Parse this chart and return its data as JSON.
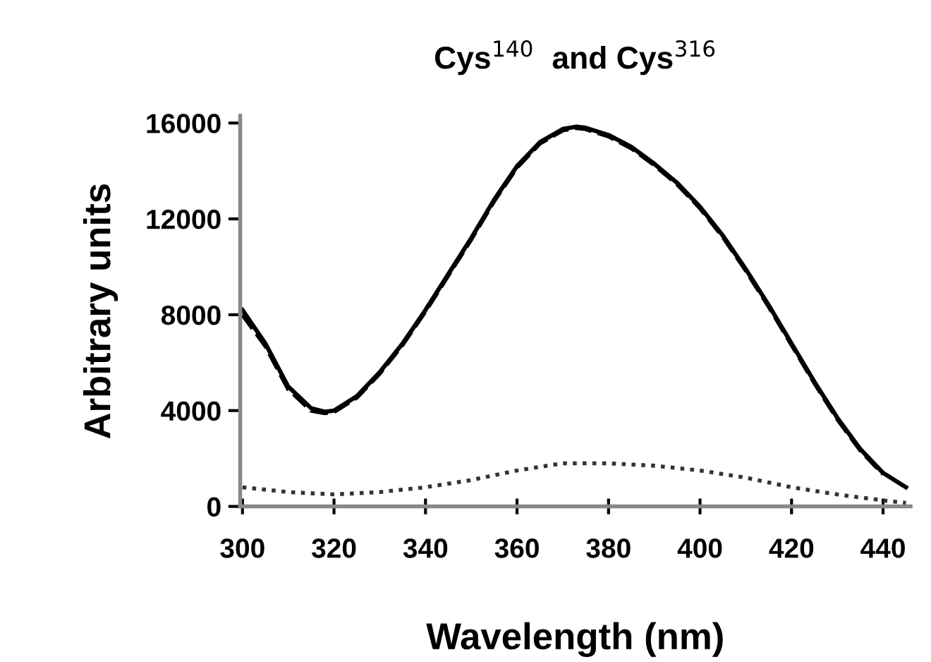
{
  "chart_data": {
    "type": "line",
    "title": "Cys$^{140}$  and Cys$^{316}$",
    "xlabel": "Wavelength (nm)",
    "ylabel": "Arbitrary units",
    "xlim": [
      299.5,
      446
    ],
    "ylim": [
      0,
      16300
    ],
    "xticks": [
      300,
      320,
      340,
      360,
      380,
      400,
      420,
      440
    ],
    "yticks": [
      0,
      4000,
      8000,
      12000,
      16000
    ],
    "grid": false,
    "legend": false,
    "marker": "none",
    "series": [
      {
        "color": "#000000",
        "line_style": "solid",
        "x": [
          300,
          305,
          310,
          315,
          318,
          320,
          325,
          330,
          335,
          340,
          345,
          350,
          355,
          360,
          365,
          370,
          373,
          375,
          380,
          385,
          390,
          395,
          400,
          405,
          410,
          415,
          420,
          425,
          430,
          435,
          440,
          445
        ],
        "values": [
          8200,
          6800,
          5000,
          4100,
          3950,
          4000,
          4600,
          5600,
          6800,
          8200,
          9700,
          11200,
          12800,
          14200,
          15200,
          15750,
          15850,
          15800,
          15500,
          15000,
          14300,
          13500,
          12500,
          11300,
          9900,
          8400,
          6800,
          5200,
          3700,
          2400,
          1400,
          800
        ]
      },
      {
        "color": "#000000",
        "line_style": "dashed",
        "x": [
          300,
          305,
          310,
          315,
          318,
          320,
          325,
          330,
          335,
          340,
          345,
          350,
          355,
          360,
          365,
          370,
          373,
          375,
          380,
          385,
          390,
          395,
          400,
          405,
          410,
          415,
          420,
          425,
          430,
          435,
          440
        ],
        "values": [
          8000,
          6700,
          4900,
          4000,
          3900,
          3950,
          4550,
          5550,
          6750,
          8150,
          9650,
          11150,
          12750,
          14150,
          15150,
          15700,
          15800,
          15750,
          15450,
          14950,
          14250,
          13450,
          12450,
          11250,
          9850,
          8350,
          6750,
          5150,
          3650,
          2350,
          1350
        ]
      },
      {
        "color": "#333333",
        "line_style": "dotted",
        "x": [
          300,
          310,
          320,
          330,
          340,
          350,
          360,
          370,
          380,
          390,
          400,
          410,
          420,
          430,
          440,
          445
        ],
        "values": [
          800,
          600,
          500,
          600,
          800,
          1100,
          1500,
          1800,
          1800,
          1700,
          1500,
          1200,
          800,
          500,
          250,
          150
        ]
      }
    ]
  }
}
